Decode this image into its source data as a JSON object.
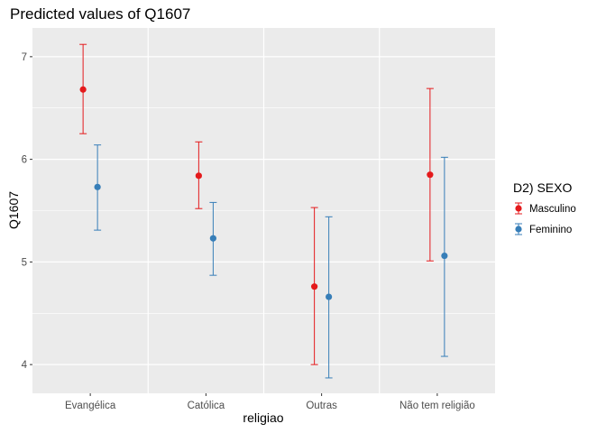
{
  "chart_data": {
    "type": "scatter",
    "title": "Predicted values of Q1607",
    "xlabel": "religiao",
    "ylabel": "Q1607",
    "categories": [
      "Evangélica",
      "Católica",
      "Outras",
      "Não tem religião"
    ],
    "y_ticks": [
      4,
      5,
      6,
      7
    ],
    "ylim": [
      3.72,
      7.28
    ],
    "grid": true,
    "legend": {
      "title": "D2) SEXO",
      "position": "right"
    },
    "series": [
      {
        "name": "Masculino",
        "color": "#E41A1C",
        "values": [
          6.68,
          5.84,
          4.76,
          5.85
        ],
        "lower": [
          6.25,
          5.52,
          4.0,
          5.01
        ],
        "upper": [
          7.12,
          6.17,
          5.53,
          6.69
        ]
      },
      {
        "name": "Feminino",
        "color": "#377EB8",
        "values": [
          5.73,
          5.23,
          4.66,
          5.06
        ],
        "lower": [
          5.31,
          4.87,
          3.87,
          4.08
        ],
        "upper": [
          6.14,
          5.58,
          5.44,
          6.02
        ]
      }
    ]
  }
}
